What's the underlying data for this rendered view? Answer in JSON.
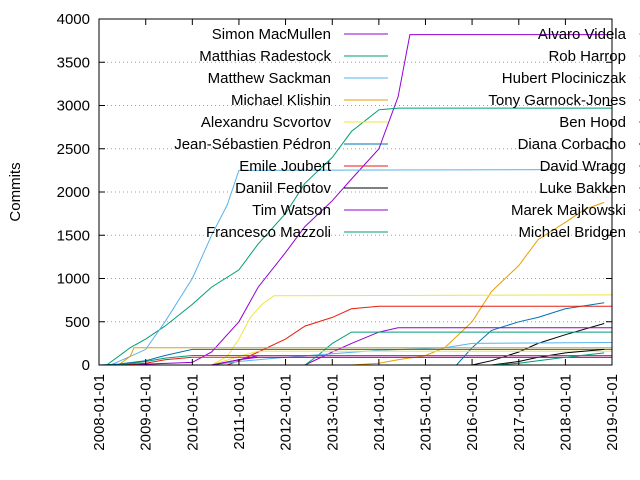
{
  "chart_data": {
    "type": "line",
    "title": "",
    "xlabel": "",
    "ylabel": "Commits",
    "ylim": [
      0,
      4000
    ],
    "xlim": [
      "2008-01-01",
      "2019-01-01"
    ],
    "yticks": [
      0,
      500,
      1000,
      1500,
      2000,
      2500,
      3000,
      3500,
      4000
    ],
    "xticks": [
      "2008-01-01",
      "2009-01-01",
      "2010-01-01",
      "2011-01-01",
      "2012-01-01",
      "2013-01-01",
      "2014-01-01",
      "2015-01-01",
      "2016-01-01",
      "2017-01-01",
      "2018-01-01",
      "2019-01-01"
    ],
    "grid": "horizontal dotted",
    "legend_placement": "top, two columns",
    "series": [
      {
        "name": "Simon MacMullen",
        "color": "#9400d3",
        "x": [
          "2008-06-01",
          "2009-01-01",
          "2010-01-01",
          "2010-06-01",
          "2011-01-01",
          "2011-06-01",
          "2012-01-01",
          "2012-06-01",
          "2013-01-01",
          "2013-06-01",
          "2014-01-01",
          "2014-06-01",
          "2014-09-01",
          "2019-01-01"
        ],
        "y": [
          0,
          10,
          30,
          150,
          500,
          900,
          1300,
          1600,
          1900,
          2150,
          2500,
          3100,
          3820,
          3820
        ]
      },
      {
        "name": "Matthias Radestock",
        "color": "#009e73",
        "x": [
          "2008-03-01",
          "2008-09-01",
          "2009-01-01",
          "2009-06-01",
          "2010-01-01",
          "2010-06-01",
          "2011-01-01",
          "2011-06-01",
          "2012-01-01",
          "2012-06-01",
          "2013-01-01",
          "2013-06-01",
          "2014-01-01",
          "2014-06-01",
          "2019-01-01"
        ],
        "y": [
          0,
          200,
          300,
          450,
          700,
          900,
          1100,
          1400,
          1750,
          2100,
          2400,
          2700,
          2950,
          2970,
          2970
        ]
      },
      {
        "name": "Matthew Sackman",
        "color": "#56b4e9",
        "x": [
          "2008-04-01",
          "2008-09-01",
          "2009-01-01",
          "2009-06-01",
          "2010-01-01",
          "2010-06-01",
          "2010-10-01",
          "2011-01-01",
          "2019-01-01"
        ],
        "y": [
          0,
          100,
          180,
          500,
          1000,
          1500,
          1850,
          2250,
          2260
        ]
      },
      {
        "name": "Michael Klishin",
        "color": "#e69f00",
        "x": [
          "2013-06-01",
          "2014-01-01",
          "2014-06-01",
          "2015-01-01",
          "2015-06-01",
          "2016-01-01",
          "2016-06-01",
          "2017-01-01",
          "2017-06-01",
          "2018-01-01",
          "2018-06-01",
          "2018-11-01"
        ],
        "y": [
          0,
          20,
          60,
          110,
          200,
          500,
          850,
          1150,
          1450,
          1650,
          1800,
          1880
        ]
      },
      {
        "name": "Alexandru Scvortov",
        "color": "#f0e442",
        "x": [
          "2010-06-01",
          "2010-10-01",
          "2011-01-01",
          "2011-04-01",
          "2011-07-01",
          "2011-10-01",
          "2019-01-01"
        ],
        "y": [
          0,
          100,
          300,
          550,
          700,
          800,
          810
        ]
      },
      {
        "name": "Jean-Sébastien Pédron",
        "color": "#0072b2",
        "x": [
          "2015-09-01",
          "2016-01-01",
          "2016-06-01",
          "2017-01-01",
          "2017-06-01",
          "2018-01-01",
          "2018-11-01"
        ],
        "y": [
          0,
          200,
          400,
          500,
          550,
          650,
          720
        ]
      },
      {
        "name": "Emile Joubert",
        "color": "#e51e10",
        "x": [
          "2010-10-01",
          "2011-01-01",
          "2011-06-01",
          "2012-01-01",
          "2012-06-01",
          "2013-01-01",
          "2013-06-01",
          "2014-01-01",
          "2019-01-01"
        ],
        "y": [
          0,
          50,
          150,
          300,
          450,
          550,
          650,
          680,
          680
        ]
      },
      {
        "name": "Daniil Fedotov",
        "color": "#000000",
        "x": [
          "2016-01-01",
          "2016-06-01",
          "2017-01-01",
          "2017-06-01",
          "2018-01-01",
          "2018-11-01"
        ],
        "y": [
          0,
          50,
          150,
          250,
          350,
          480
        ]
      },
      {
        "name": "Tim Watson",
        "color": "#9400d3",
        "x": [
          "2012-06-01",
          "2013-01-01",
          "2013-06-01",
          "2014-01-01",
          "2014-06-01",
          "2019-01-01"
        ],
        "y": [
          0,
          150,
          250,
          380,
          430,
          430
        ]
      },
      {
        "name": "Francesco Mazzoli",
        "color": "#009e73",
        "x": [
          "2012-06-01",
          "2012-09-01",
          "2013-01-01",
          "2013-06-01",
          "2019-01-01"
        ],
        "y": [
          0,
          100,
          250,
          380,
          380
        ]
      },
      {
        "name": "Alvaro Videla",
        "color": "#56b4e9",
        "x": [
          "2010-06-01",
          "2011-01-01",
          "2012-01-01",
          "2013-01-01",
          "2014-01-01",
          "2015-06-01",
          "2016-01-01",
          "2019-01-01"
        ],
        "y": [
          0,
          40,
          90,
          130,
          170,
          200,
          250,
          260
        ]
      },
      {
        "name": "Rob Harrop",
        "color": "#e69f00",
        "x": [
          "2008-06-01",
          "2008-09-01",
          "2008-10-01",
          "2019-01-01"
        ],
        "y": [
          0,
          100,
          200,
          200
        ]
      },
      {
        "name": "Hubert Plociniczak",
        "color": "#f0e442",
        "x": [
          "2010-06-01",
          "2011-01-01",
          "2011-06-01",
          "2019-01-01"
        ],
        "y": [
          0,
          100,
          160,
          160
        ]
      },
      {
        "name": "Tony Garnock-Jones",
        "color": "#0072b2",
        "x": [
          "2008-01-01",
          "2008-06-01",
          "2009-01-01",
          "2009-06-01",
          "2010-01-01",
          "2019-01-01"
        ],
        "y": [
          0,
          10,
          50,
          110,
          180,
          180
        ]
      },
      {
        "name": "Ben Hood",
        "color": "#e51e10",
        "x": [
          "2008-06-01",
          "2009-01-01",
          "2009-06-01",
          "2010-01-01",
          "2019-01-01"
        ],
        "y": [
          0,
          20,
          60,
          90,
          90
        ]
      },
      {
        "name": "Diana Corbacho",
        "color": "#000000",
        "x": [
          "2016-06-01",
          "2017-01-01",
          "2017-06-01",
          "2018-01-01",
          "2018-11-01"
        ],
        "y": [
          0,
          40,
          90,
          140,
          180
        ]
      },
      {
        "name": "David Wragg",
        "color": "#9400d3",
        "x": [
          "2010-06-01",
          "2011-01-01",
          "2011-06-01",
          "2019-01-01"
        ],
        "y": [
          0,
          60,
          90,
          90
        ]
      },
      {
        "name": "Luke Bakken",
        "color": "#009e73",
        "x": [
          "2016-06-01",
          "2017-01-01",
          "2017-06-01",
          "2018-01-01",
          "2018-11-01"
        ],
        "y": [
          0,
          20,
          50,
          90,
          140
        ]
      },
      {
        "name": "Marek Majkowski",
        "color": "#9400d3",
        "x": [
          "2010-06-01",
          "2011-01-01",
          "2011-06-01",
          "2019-01-01"
        ],
        "y": [
          0,
          60,
          110,
          110
        ]
      },
      {
        "name": "Michael Bridgen",
        "color": "#009e73",
        "x": [
          "2008-06-01",
          "2009-01-01",
          "2009-06-01",
          "2010-01-01",
          "2019-01-01"
        ],
        "y": [
          0,
          40,
          80,
          110,
          110
        ]
      }
    ]
  }
}
